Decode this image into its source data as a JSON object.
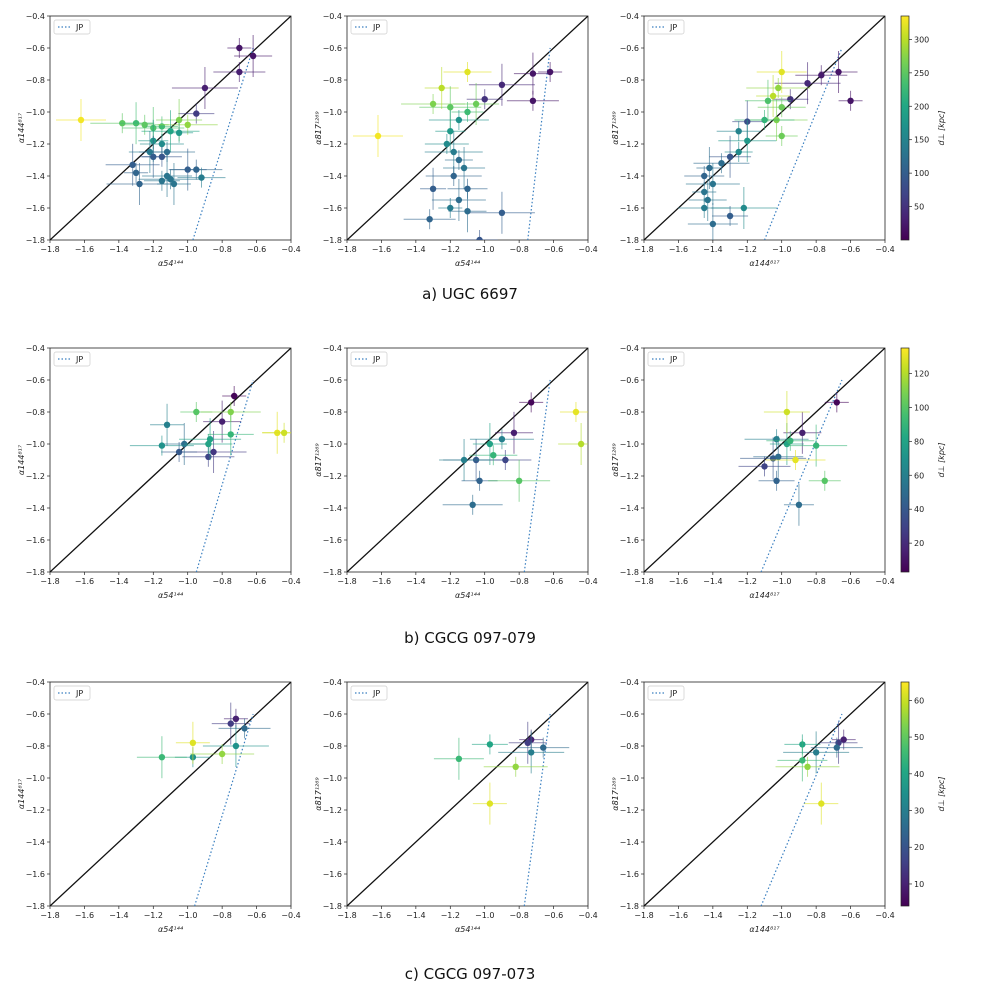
{
  "jp_label": "JP",
  "cbar_label": "d⊥ [kpc]",
  "axis_range": [
    -1.8,
    -0.4
  ],
  "ticks": [
    "−1.8",
    "−1.6",
    "−1.4",
    "−1.2",
    "−1.0",
    "−0.8",
    "−0.6",
    "−0.4"
  ],
  "chart_data": [
    {
      "caption": "a) UGC 6697",
      "cbar_ticks": [
        "50",
        "100",
        "150",
        "200",
        "250",
        "300"
      ],
      "cbar_values": [
        50,
        100,
        150,
        200,
        250,
        300
      ],
      "cbar_range": [
        0,
        335
      ],
      "panels": [
        {
          "type": "scatter",
          "xlabel": "α54¹⁴⁴",
          "ylabel": "α144⁸¹⁷",
          "jp": [
            [
              -0.97,
              -1.8
            ],
            [
              -0.62,
              -0.6
            ]
          ],
          "points": [
            [
              -0.7,
              -0.6,
              20
            ],
            [
              -0.62,
              -0.65,
              20
            ],
            [
              -0.7,
              -0.75,
              30
            ],
            [
              -0.9,
              -0.85,
              30
            ],
            [
              -0.95,
              -1.01,
              60
            ],
            [
              -1.62,
              -1.05,
              330
            ],
            [
              -1.38,
              -1.07,
              250
            ],
            [
              -1.3,
              -1.07,
              230
            ],
            [
              -1.25,
              -1.08,
              250
            ],
            [
              -1.2,
              -1.1,
              240
            ],
            [
              -1.15,
              -1.09,
              230
            ],
            [
              -1.05,
              -1.05,
              270
            ],
            [
              -1.0,
              -1.08,
              280
            ],
            [
              -1.2,
              -1.18,
              180
            ],
            [
              -1.15,
              -1.2,
              160
            ],
            [
              -1.1,
              -1.12,
              200
            ],
            [
              -1.05,
              -1.13,
              180
            ],
            [
              -1.22,
              -1.25,
              140
            ],
            [
              -1.12,
              -1.25,
              120
            ],
            [
              -1.2,
              -1.28,
              100
            ],
            [
              -1.15,
              -1.28,
              90
            ],
            [
              -1.32,
              -1.33,
              100
            ],
            [
              -1.3,
              -1.38,
              110
            ],
            [
              -1.0,
              -1.36,
              100
            ],
            [
              -0.95,
              -1.36,
              110
            ],
            [
              -1.28,
              -1.45,
              110
            ],
            [
              -1.15,
              -1.43,
              130
            ],
            [
              -1.12,
              -1.4,
              130
            ],
            [
              -1.1,
              -1.42,
              130
            ],
            [
              -1.08,
              -1.45,
              130
            ],
            [
              -0.92,
              -1.41,
              140
            ]
          ]
        },
        {
          "type": "scatter",
          "xlabel": "α54¹⁴⁴",
          "ylabel": "α817¹²⁶⁹",
          "jp": [
            [
              -0.75,
              -1.8
            ],
            [
              -0.62,
              -0.6
            ]
          ],
          "points": [
            [
              -0.62,
              -0.75,
              20
            ],
            [
              -0.72,
              -0.76,
              20
            ],
            [
              -0.72,
              -0.93,
              20
            ],
            [
              -0.9,
              -0.83,
              40
            ],
            [
              -1.0,
              -0.92,
              50
            ],
            [
              -1.62,
              -1.15,
              330
            ],
            [
              -1.3,
              -0.95,
              270
            ],
            [
              -1.25,
              -0.85,
              300
            ],
            [
              -1.1,
              -0.75,
              320
            ],
            [
              -1.2,
              -0.97,
              250
            ],
            [
              -1.1,
              -1.0,
              230
            ],
            [
              -1.05,
              -0.95,
              260
            ],
            [
              -1.15,
              -1.05,
              170
            ],
            [
              -1.2,
              -1.12,
              180
            ],
            [
              -1.22,
              -1.2,
              160
            ],
            [
              -1.18,
              -1.25,
              140
            ],
            [
              -1.15,
              -1.3,
              120
            ],
            [
              -1.12,
              -1.35,
              130
            ],
            [
              -1.18,
              -1.4,
              110
            ],
            [
              -1.3,
              -1.48,
              100
            ],
            [
              -1.1,
              -1.48,
              110
            ],
            [
              -1.15,
              -1.55,
              120
            ],
            [
              -1.2,
              -1.6,
              140
            ],
            [
              -1.1,
              -1.62,
              120
            ],
            [
              -1.32,
              -1.67,
              110
            ],
            [
              -0.9,
              -1.63,
              100
            ],
            [
              -1.03,
              -1.8,
              90
            ]
          ]
        },
        {
          "type": "scatter",
          "xlabel": "α144⁸¹⁷",
          "ylabel": "α817¹²⁶⁹",
          "jp": [
            [
              -1.1,
              -1.8
            ],
            [
              -0.65,
              -0.6
            ]
          ],
          "points": [
            [
              -0.6,
              -0.93,
              20
            ],
            [
              -0.67,
              -0.75,
              20
            ],
            [
              -0.77,
              -0.77,
              25
            ],
            [
              -0.85,
              -0.82,
              40
            ],
            [
              -0.95,
              -0.92,
              50
            ],
            [
              -1.0,
              -0.75,
              320
            ],
            [
              -1.02,
              -0.85,
              280
            ],
            [
              -1.05,
              -0.9,
              300
            ],
            [
              -1.0,
              -0.97,
              260
            ],
            [
              -1.03,
              -1.05,
              270
            ],
            [
              -1.0,
              -1.15,
              260
            ],
            [
              -1.08,
              -0.93,
              240
            ],
            [
              -1.1,
              -1.05,
              220
            ],
            [
              -1.2,
              -1.06,
              80
            ],
            [
              -1.25,
              -1.12,
              150
            ],
            [
              -1.2,
              -1.18,
              180
            ],
            [
              -1.25,
              -1.25,
              160
            ],
            [
              -1.3,
              -1.28,
              90
            ],
            [
              -1.35,
              -1.32,
              120
            ],
            [
              -1.42,
              -1.35,
              120
            ],
            [
              -1.45,
              -1.4,
              110
            ],
            [
              -1.4,
              -1.45,
              130
            ],
            [
              -1.45,
              -1.5,
              130
            ],
            [
              -1.43,
              -1.55,
              130
            ],
            [
              -1.45,
              -1.6,
              140
            ],
            [
              -1.22,
              -1.6,
              160
            ],
            [
              -1.3,
              -1.65,
              100
            ],
            [
              -1.4,
              -1.7,
              120
            ]
          ]
        }
      ]
    },
    {
      "caption": "b) CGCG 097-079",
      "cbar_ticks": [
        "20",
        "40",
        "60",
        "80",
        "100",
        "120"
      ],
      "cbar_values": [
        20,
        40,
        60,
        80,
        100,
        120
      ],
      "cbar_range": [
        3,
        135
      ],
      "panels": [
        {
          "type": "scatter",
          "xlabel": "α54¹⁴⁴",
          "ylabel": "α144⁸¹⁷",
          "jp": [
            [
              -0.95,
              -1.8
            ],
            [
              -0.62,
              -0.6
            ]
          ],
          "points": [
            [
              -0.73,
              -0.7,
              5
            ],
            [
              -0.8,
              -0.86,
              15
            ],
            [
              -0.88,
              -1.08,
              30
            ],
            [
              -0.85,
              -1.05,
              25
            ],
            [
              -1.05,
              -1.05,
              40
            ],
            [
              -1.02,
              -1.0,
              50
            ],
            [
              -1.15,
              -1.01,
              70
            ],
            [
              -1.12,
              -0.88,
              60
            ],
            [
              -0.88,
              -1.0,
              80
            ],
            [
              -0.87,
              -0.97,
              80
            ],
            [
              -0.95,
              -0.8,
              100
            ],
            [
              -0.75,
              -0.94,
              90
            ],
            [
              -0.75,
              -0.8,
              110
            ],
            [
              -0.48,
              -0.93,
              130
            ],
            [
              -0.44,
              -0.93,
              125
            ]
          ]
        },
        {
          "type": "scatter",
          "xlabel": "α54¹⁴⁴",
          "ylabel": "α817¹²⁶⁹",
          "jp": [
            [
              -0.77,
              -1.8
            ],
            [
              -0.62,
              -0.6
            ]
          ],
          "points": [
            [
              -0.73,
              -0.74,
              5
            ],
            [
              -0.83,
              -0.93,
              15
            ],
            [
              -0.88,
              -1.1,
              30
            ],
            [
              -1.05,
              -1.1,
              40
            ],
            [
              -1.03,
              -1.23,
              45
            ],
            [
              -1.12,
              -1.1,
              60
            ],
            [
              -0.9,
              -0.97,
              60
            ],
            [
              -0.97,
              -1.0,
              80
            ],
            [
              -0.95,
              -1.07,
              90
            ],
            [
              -0.8,
              -1.23,
              100
            ],
            [
              -0.47,
              -0.8,
              130
            ],
            [
              -0.44,
              -1.0,
              120
            ],
            [
              -1.07,
              -1.38,
              50
            ]
          ]
        },
        {
          "type": "scatter",
          "xlabel": "α144⁸¹⁷",
          "ylabel": "α817¹²⁶⁹",
          "jp": [
            [
              -1.12,
              -1.8
            ],
            [
              -0.65,
              -0.6
            ]
          ],
          "points": [
            [
              -0.68,
              -0.74,
              5
            ],
            [
              -0.88,
              -0.93,
              15
            ],
            [
              -1.1,
              -1.14,
              30
            ],
            [
              -1.05,
              -1.09,
              40
            ],
            [
              -1.03,
              -1.23,
              45
            ],
            [
              -1.02,
              -1.08,
              50
            ],
            [
              -1.03,
              -0.97,
              60
            ],
            [
              -0.97,
              -1.0,
              80
            ],
            [
              -0.95,
              -0.98,
              90
            ],
            [
              -0.8,
              -1.01,
              90
            ],
            [
              -0.75,
              -1.23,
              100
            ],
            [
              -0.97,
              -0.8,
              125
            ],
            [
              -0.92,
              -1.1,
              130
            ],
            [
              -0.9,
              -1.38,
              50
            ]
          ]
        }
      ]
    },
    {
      "caption": "c) CGCG 097-073",
      "cbar_ticks": [
        "10",
        "20",
        "30",
        "40",
        "50",
        "60"
      ],
      "cbar_values": [
        10,
        20,
        30,
        40,
        50,
        60
      ],
      "cbar_range": [
        4,
        65
      ],
      "panels": [
        {
          "type": "scatter",
          "xlabel": "α54¹⁴⁴",
          "ylabel": "α144⁸¹⁷",
          "jp": [
            [
              -0.96,
              -1.8
            ],
            [
              -0.62,
              -0.6
            ]
          ],
          "points": [
            [
              -0.72,
              -0.63,
              10
            ],
            [
              -0.75,
              -0.66,
              15
            ],
            [
              -0.67,
              -0.69,
              25
            ],
            [
              -0.72,
              -0.8,
              35
            ],
            [
              -0.97,
              -0.87,
              35
            ],
            [
              -1.15,
              -0.87,
              45
            ],
            [
              -0.8,
              -0.85,
              55
            ],
            [
              -0.97,
              -0.78,
              62
            ]
          ]
        },
        {
          "type": "scatter",
          "xlabel": "α54¹⁴⁴",
          "ylabel": "α817¹²⁶⁹",
          "jp": [
            [
              -0.77,
              -1.8
            ],
            [
              -0.62,
              -0.6
            ]
          ],
          "points": [
            [
              -0.73,
              -0.76,
              10
            ],
            [
              -0.75,
              -0.78,
              15
            ],
            [
              -0.66,
              -0.81,
              25
            ],
            [
              -0.73,
              -0.84,
              30
            ],
            [
              -0.97,
              -0.79,
              40
            ],
            [
              -1.15,
              -0.88,
              45
            ],
            [
              -0.82,
              -0.93,
              55
            ],
            [
              -0.97,
              -1.16,
              62
            ]
          ]
        },
        {
          "type": "scatter",
          "xlabel": "α144⁸¹⁷",
          "ylabel": "α817¹²⁶⁹",
          "jp": [
            [
              -1.12,
              -1.8
            ],
            [
              -0.65,
              -0.6
            ]
          ],
          "points": [
            [
              -0.64,
              -0.76,
              10
            ],
            [
              -0.67,
              -0.78,
              15
            ],
            [
              -0.68,
              -0.81,
              25
            ],
            [
              -0.8,
              -0.84,
              30
            ],
            [
              -0.88,
              -0.79,
              40
            ],
            [
              -0.88,
              -0.89,
              45
            ],
            [
              -0.85,
              -0.93,
              55
            ],
            [
              -0.77,
              -1.16,
              62
            ]
          ]
        }
      ]
    }
  ]
}
